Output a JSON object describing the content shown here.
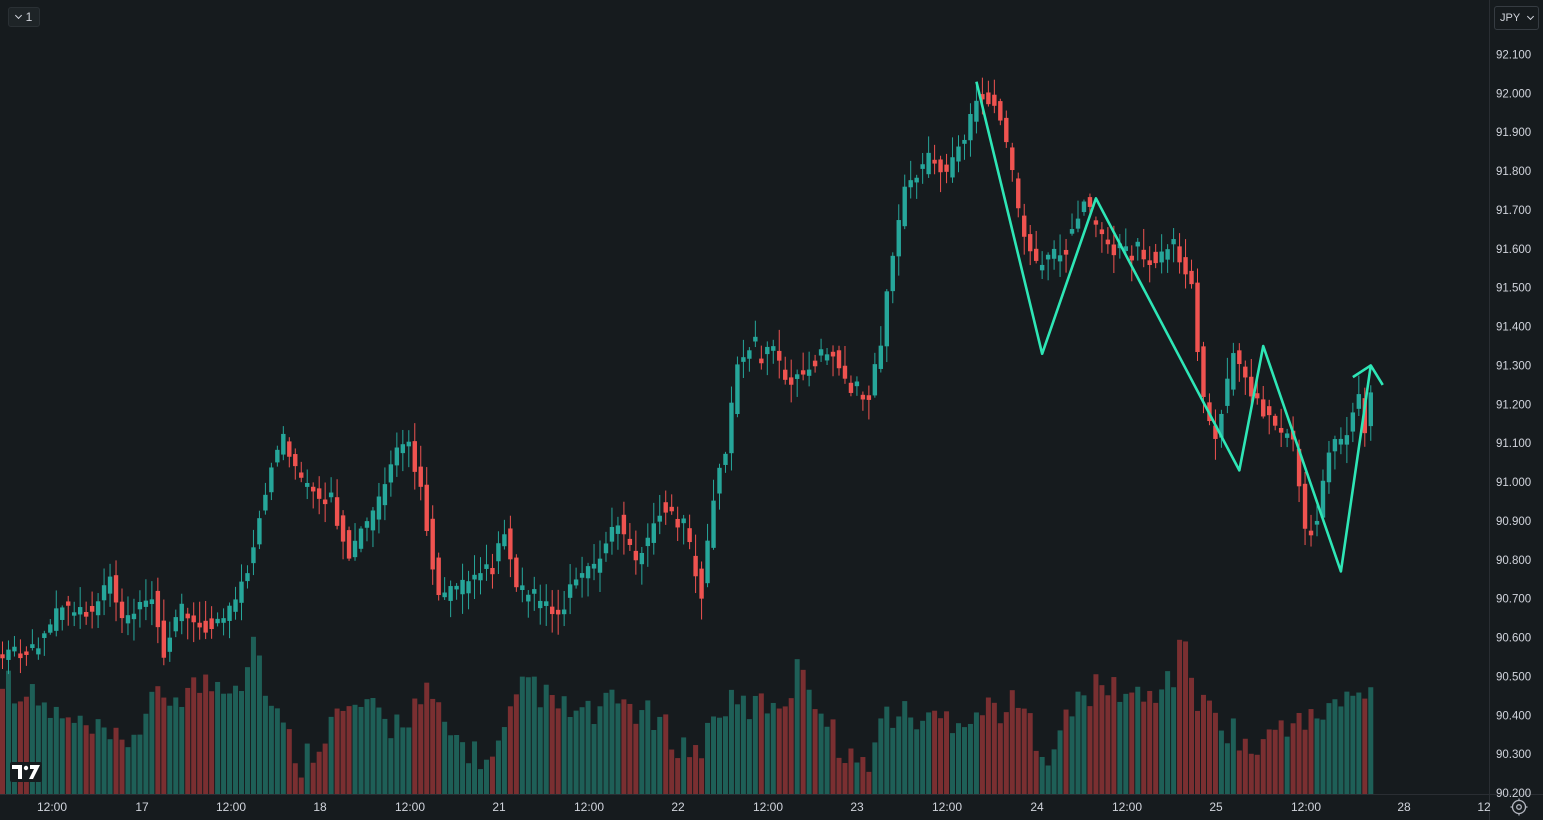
{
  "toolbar": {
    "interval_label": "1",
    "currency_label": "JPY"
  },
  "colors": {
    "up": "#26a69a",
    "down": "#ef5350",
    "pattern_line": "#2ee6b6",
    "background": "#161b1e",
    "axis_text": "#d1d4dc"
  },
  "chart_data": {
    "type": "candlestick",
    "symbol_currency": "JPY",
    "y_ticks": [
      92.1,
      92.0,
      91.9,
      91.8,
      91.7,
      91.6,
      91.5,
      91.4,
      91.3,
      91.2,
      91.1,
      91.0,
      90.9,
      90.8,
      90.7,
      90.6,
      90.5,
      90.4,
      90.3,
      90.2
    ],
    "ylim": [
      90.19,
      92.13
    ],
    "x_tick_labels": [
      "12:00",
      "17",
      "12:00",
      "18",
      "12:00",
      "21",
      "12:00",
      "22",
      "12:00",
      "23",
      "12:00",
      "24",
      "12:00",
      "25",
      "12:00",
      "28",
      "12"
    ],
    "price_anchors": [
      [
        0,
        90.56
      ],
      [
        5,
        90.57
      ],
      [
        10,
        90.68
      ],
      [
        15,
        90.66
      ],
      [
        18,
        90.75
      ],
      [
        20,
        90.63
      ],
      [
        25,
        90.7
      ],
      [
        27,
        90.56
      ],
      [
        30,
        90.67
      ],
      [
        35,
        90.62
      ],
      [
        38,
        90.67
      ],
      [
        41,
        90.78
      ],
      [
        45,
        91.05
      ],
      [
        47,
        91.12
      ],
      [
        50,
        91.0
      ],
      [
        55,
        90.95
      ],
      [
        58,
        90.82
      ],
      [
        62,
        90.92
      ],
      [
        66,
        91.07
      ],
      [
        68,
        91.1
      ],
      [
        70,
        90.98
      ],
      [
        73,
        90.7
      ],
      [
        78,
        90.74
      ],
      [
        82,
        90.78
      ],
      [
        84,
        90.88
      ],
      [
        86,
        90.72
      ],
      [
        90,
        90.68
      ],
      [
        93,
        90.65
      ],
      [
        95,
        90.72
      ],
      [
        100,
        90.8
      ],
      [
        103,
        90.9
      ],
      [
        106,
        90.78
      ],
      [
        110,
        90.93
      ],
      [
        114,
        90.88
      ],
      [
        117,
        90.72
      ],
      [
        119,
        90.96
      ],
      [
        121,
        91.09
      ],
      [
        123,
        91.3
      ],
      [
        125,
        91.35
      ],
      [
        127,
        91.32
      ],
      [
        129,
        91.35
      ],
      [
        131,
        91.25
      ],
      [
        135,
        91.3
      ],
      [
        139,
        91.35
      ],
      [
        142,
        91.23
      ],
      [
        145,
        91.24
      ],
      [
        147,
        91.35
      ],
      [
        149,
        91.6
      ],
      [
        151,
        91.75
      ],
      [
        155,
        91.83
      ],
      [
        158,
        91.8
      ],
      [
        161,
        91.88
      ],
      [
        163,
        92.0
      ],
      [
        166,
        91.98
      ],
      [
        168,
        91.88
      ],
      [
        170,
        91.7
      ],
      [
        173,
        91.55
      ],
      [
        175,
        91.57
      ],
      [
        178,
        91.62
      ],
      [
        181,
        91.72
      ],
      [
        184,
        91.64
      ],
      [
        187,
        91.58
      ],
      [
        190,
        91.6
      ],
      [
        193,
        91.56
      ],
      [
        196,
        91.62
      ],
      [
        199,
        91.5
      ],
      [
        201,
        91.2
      ],
      [
        203,
        91.12
      ],
      [
        206,
        91.32
      ],
      [
        208,
        91.28
      ],
      [
        210,
        91.2
      ],
      [
        213,
        91.15
      ],
      [
        216,
        91.1
      ],
      [
        218,
        90.88
      ],
      [
        220,
        90.9
      ],
      [
        222,
        91.08
      ],
      [
        225,
        91.13
      ],
      [
        227,
        91.22
      ],
      [
        228,
        91.13
      ],
      [
        229,
        91.22
      ]
    ],
    "volume_anchors": [
      [
        0,
        0.6
      ],
      [
        10,
        0.38
      ],
      [
        20,
        0.24
      ],
      [
        26,
        0.48
      ],
      [
        32,
        0.55
      ],
      [
        40,
        0.6
      ],
      [
        42,
        0.82
      ],
      [
        45,
        0.45
      ],
      [
        50,
        0.16
      ],
      [
        55,
        0.38
      ],
      [
        60,
        0.45
      ],
      [
        65,
        0.35
      ],
      [
        71,
        0.5
      ],
      [
        75,
        0.3
      ],
      [
        82,
        0.15
      ],
      [
        88,
        0.6
      ],
      [
        92,
        0.45
      ],
      [
        98,
        0.4
      ],
      [
        104,
        0.48
      ],
      [
        110,
        0.35
      ],
      [
        116,
        0.2
      ],
      [
        120,
        0.45
      ],
      [
        126,
        0.45
      ],
      [
        131,
        0.5
      ],
      [
        134,
        0.68
      ],
      [
        138,
        0.35
      ],
      [
        144,
        0.12
      ],
      [
        148,
        0.42
      ],
      [
        155,
        0.38
      ],
      [
        163,
        0.42
      ],
      [
        166,
        0.45
      ],
      [
        170,
        0.45
      ],
      [
        175,
        0.22
      ],
      [
        181,
        0.52
      ],
      [
        186,
        0.55
      ],
      [
        191,
        0.48
      ],
      [
        196,
        0.62
      ],
      [
        198,
        0.8
      ],
      [
        200,
        0.48
      ],
      [
        205,
        0.35
      ],
      [
        210,
        0.2
      ],
      [
        214,
        0.38
      ],
      [
        218,
        0.35
      ],
      [
        222,
        0.45
      ],
      [
        229,
        0.52
      ]
    ],
    "pattern_line": [
      [
        163,
        92.03
      ],
      [
        174,
        91.33
      ],
      [
        183,
        91.73
      ],
      [
        207,
        91.03
      ],
      [
        211,
        91.35
      ],
      [
        224,
        90.77
      ],
      [
        229,
        91.3
      ],
      [
        231,
        91.25
      ]
    ],
    "pattern_extension": [
      [
        226,
        91.27
      ],
      [
        229,
        91.3
      ]
    ]
  }
}
